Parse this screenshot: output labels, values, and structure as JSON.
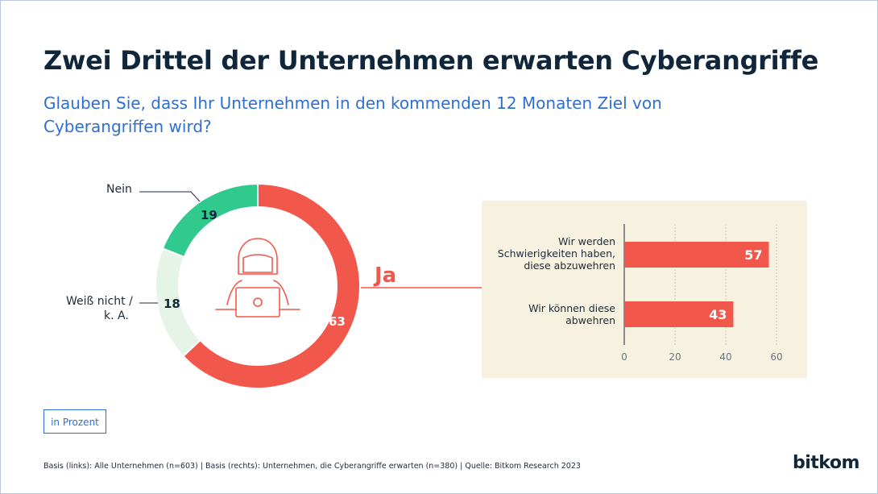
{
  "title": "Zwei Drittel der Unternehmen erwarten Cyberangriffe",
  "subtitle": "Glauben Sie, dass Ihr Unternehmen in den kommenden 12 Monaten Ziel von Cyberangriffen wird?",
  "unit_box": "in Prozent",
  "footnote": "Basis (links): Alle Unternehmen (n=603) | Basis (rechts): Unternehmen, die Cyberangriffe erwarten (n=380) | Quelle: Bitkom Research  2023",
  "brand": "bitkom",
  "ja_label": "Ja",
  "icons": {
    "center": "hacker-laptop-icon"
  },
  "colors": {
    "ja": "#f2574b",
    "nein": "#30c98e",
    "weiss_nicht": "#e6f4e8",
    "panel": "#f7f1e0",
    "title": "#10263a",
    "subtitle": "#2e6fd0"
  },
  "chart_data": [
    {
      "type": "pie",
      "categories": [
        "Ja",
        "Weiß nicht / k. A.",
        "Nein"
      ],
      "values": [
        63,
        18,
        19
      ],
      "labels": {
        "nein": "Nein",
        "weiss_line1": "Weiß nicht /",
        "weiss_line2": "k. A."
      }
    },
    {
      "type": "bar",
      "categories": [
        [
          "Wir werden",
          "Schwierigkeiten haben,",
          "diese abzuwehren"
        ],
        [
          "Wir können diese",
          "abwehren"
        ]
      ],
      "values": [
        57,
        43
      ],
      "xlim": [
        0,
        60
      ],
      "ticks": [
        0,
        20,
        40,
        60
      ],
      "grid": true
    }
  ]
}
